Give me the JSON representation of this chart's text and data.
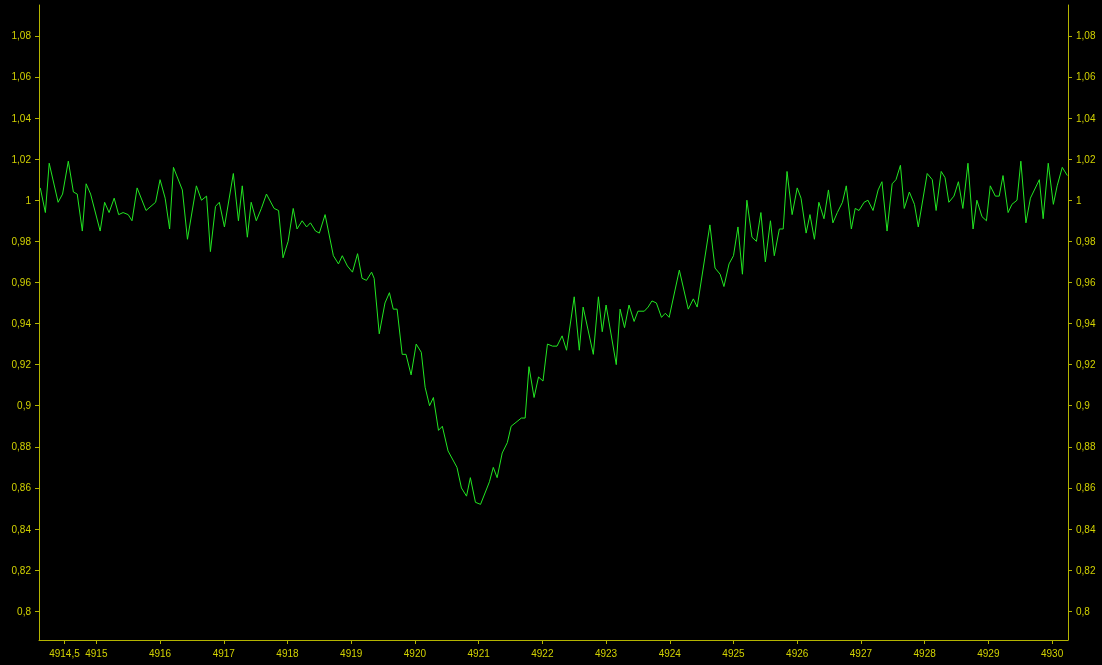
{
  "chart_data": {
    "type": "line",
    "color": "#22e622",
    "marker": "none",
    "x": [
      4914.12,
      4914.2,
      4914.26,
      4914.4,
      4914.47,
      4914.56,
      4914.64,
      4914.7,
      4914.78,
      4914.84,
      4914.91,
      4915.06,
      4915.13,
      4915.2,
      4915.28,
      4915.35,
      4915.42,
      4915.5,
      4915.56,
      4915.64,
      4915.78,
      4915.93,
      4916.0,
      4916.08,
      4916.15,
      4916.21,
      4916.35,
      4916.43,
      4916.57,
      4916.65,
      4916.73,
      4916.79,
      4916.87,
      4916.93,
      4917.01,
      4917.15,
      4917.23,
      4917.29,
      4917.37,
      4917.43,
      4917.51,
      4917.59,
      4917.67,
      4917.79,
      4917.86,
      4917.93,
      4918.01,
      4918.09,
      4918.15,
      4918.23,
      4918.3,
      4918.36,
      4918.44,
      4918.5,
      4918.59,
      4918.72,
      4918.8,
      4918.86,
      4918.94,
      4919.02,
      4919.1,
      4919.17,
      4919.24,
      4919.32,
      4919.36,
      4919.44,
      4919.53,
      4919.6,
      4919.66,
      4919.72,
      4919.8,
      4919.86,
      4919.94,
      4920.02,
      4920.1,
      4920.16,
      4920.23,
      4920.29,
      4920.37,
      4920.43,
      4920.52,
      4920.66,
      4920.73,
      4920.81,
      4920.87,
      4920.95,
      4921.03,
      4921.17,
      4921.23,
      4921.29,
      4921.37,
      4921.45,
      4921.51,
      4921.67,
      4921.73,
      4921.79,
      4921.87,
      4921.94,
      4922.01,
      4922.08,
      4922.16,
      4922.23,
      4922.31,
      4922.38,
      4922.5,
      4922.58,
      4922.64,
      4922.8,
      4922.88,
      4922.94,
      4923.0,
      4923.16,
      4923.22,
      4923.29,
      4923.36,
      4923.44,
      4923.5,
      4923.6,
      4923.66,
      4923.72,
      4923.79,
      4923.87,
      4923.93,
      4923.99,
      4924.15,
      4924.29,
      4924.37,
      4924.43,
      4924.63,
      4924.71,
      4924.79,
      4924.85,
      4924.93,
      4925.0,
      4925.07,
      4925.14,
      4925.21,
      4925.29,
      4925.36,
      4925.43,
      4925.5,
      4925.58,
      4925.64,
      4925.72,
      4925.78,
      4925.84,
      4925.92,
      4926.0,
      4926.06,
      4926.14,
      4926.2,
      4926.27,
      4926.34,
      4926.42,
      4926.49,
      4926.56,
      4926.63,
      4926.71,
      4926.77,
      4926.85,
      4926.91,
      4926.97,
      4927.05,
      4927.11,
      4927.19,
      4927.27,
      4927.33,
      4927.41,
      4927.49,
      4927.55,
      4927.62,
      4927.68,
      4927.76,
      4927.84,
      4927.9,
      4928.04,
      4928.12,
      4928.18,
      4928.26,
      4928.32,
      4928.38,
      4928.46,
      4928.53,
      4928.6,
      4928.68,
      4928.76,
      4928.82,
      4928.9,
      4928.97,
      4929.03,
      4929.11,
      4929.17,
      4929.23,
      4929.31,
      4929.37,
      4929.45,
      4929.51,
      4929.59,
      4929.66,
      4929.8,
      4929.86,
      4929.94,
      4930.02,
      4930.08,
      4930.16,
      4930.24
    ],
    "values": [
      1.006,
      0.994,
      1.018,
      0.999,
      1.003,
      1.019,
      1.004,
      1.003,
      0.985,
      1.008,
      1.003,
      0.985,
      0.999,
      0.994,
      1.001,
      0.993,
      0.994,
      0.993,
      0.99,
      1.006,
      0.995,
      0.999,
      1.01,
      1.001,
      0.986,
      1.016,
      1.005,
      0.981,
      1.007,
      1.0,
      1.002,
      0.975,
      0.997,
      0.999,
      0.987,
      1.013,
      0.99,
      1.007,
      0.982,
      0.999,
      0.99,
      0.996,
      1.003,
      0.996,
      0.995,
      0.972,
      0.98,
      0.996,
      0.986,
      0.99,
      0.987,
      0.989,
      0.985,
      0.984,
      0.993,
      0.973,
      0.969,
      0.973,
      0.968,
      0.965,
      0.974,
      0.962,
      0.961,
      0.965,
      0.962,
      0.935,
      0.95,
      0.955,
      0.947,
      0.947,
      0.925,
      0.925,
      0.915,
      0.93,
      0.926,
      0.909,
      0.9,
      0.904,
      0.888,
      0.89,
      0.878,
      0.87,
      0.86,
      0.856,
      0.865,
      0.853,
      0.852,
      0.863,
      0.87,
      0.865,
      0.877,
      0.882,
      0.89,
      0.894,
      0.894,
      0.919,
      0.904,
      0.914,
      0.912,
      0.93,
      0.929,
      0.929,
      0.934,
      0.927,
      0.953,
      0.927,
      0.948,
      0.925,
      0.953,
      0.936,
      0.949,
      0.92,
      0.947,
      0.938,
      0.949,
      0.941,
      0.946,
      0.946,
      0.948,
      0.951,
      0.95,
      0.943,
      0.945,
      0.943,
      0.966,
      0.947,
      0.952,
      0.948,
      0.988,
      0.967,
      0.964,
      0.958,
      0.969,
      0.973,
      0.987,
      0.964,
      1.0,
      0.982,
      0.98,
      0.994,
      0.97,
      0.99,
      0.973,
      0.986,
      0.986,
      1.014,
      0.993,
      1.006,
      1.001,
      0.984,
      0.993,
      0.981,
      0.999,
      0.991,
      1.005,
      0.989,
      0.994,
      0.999,
      1.007,
      0.986,
      0.996,
      0.995,
      0.999,
      1.0,
      0.995,
      1.005,
      1.009,
      0.985,
      1.008,
      1.01,
      1.017,
      0.996,
      1.004,
      0.998,
      0.987,
      1.013,
      1.01,
      0.995,
      1.014,
      1.011,
      0.999,
      1.002,
      1.009,
      0.996,
      1.018,
      0.986,
      1.0,
      0.992,
      0.99,
      1.007,
      1.002,
      1.002,
      1.012,
      0.994,
      0.998,
      1.0,
      1.019,
      0.989,
      1.001,
      1.01,
      0.991,
      1.018,
      0.998,
      1.007,
      1.016,
      1.012
    ],
    "xlim": [
      4914.1,
      4930.25
    ],
    "xticks": [
      {
        "value": 4914.5,
        "label": "4914,5"
      },
      4915,
      4916,
      4917,
      4918,
      4919,
      4920,
      4921,
      4922,
      4923,
      4924,
      4925,
      4926,
      4927,
      4928,
      4929,
      4930
    ],
    "ylim": [
      0.786,
      1.095
    ],
    "yticks": [
      {
        "value": 0.8,
        "label": "0,8"
      },
      {
        "value": 0.82,
        "label": "0,82"
      },
      {
        "value": 0.84,
        "label": "0,84"
      },
      {
        "value": 0.86,
        "label": "0,86"
      },
      {
        "value": 0.88,
        "label": "0,88"
      },
      {
        "value": 0.9,
        "label": "0,9"
      },
      {
        "value": 0.92,
        "label": "0,92"
      },
      {
        "value": 0.94,
        "label": "0,94"
      },
      {
        "value": 0.96,
        "label": "0,96"
      },
      {
        "value": 0.98,
        "label": "0,98"
      },
      1,
      {
        "value": 1.02,
        "label": "1,02"
      },
      {
        "value": 1.04,
        "label": "1,04"
      },
      {
        "value": 1.06,
        "label": "1,06"
      },
      {
        "value": 1.08,
        "label": "1,08"
      }
    ],
    "y2lim": [
      0.786,
      1.095
    ],
    "y2ticks": [
      {
        "value": 0.8,
        "label": "0,8"
      },
      {
        "value": 0.82,
        "label": "0,82"
      },
      {
        "value": 0.84,
        "label": "0,84"
      },
      {
        "value": 0.86,
        "label": "0,86"
      },
      {
        "value": 0.88,
        "label": "0,88"
      },
      {
        "value": 0.9,
        "label": "0,9"
      },
      {
        "value": 0.92,
        "label": "0,92"
      },
      {
        "value": 0.94,
        "label": "0,94"
      },
      {
        "value": 0.96,
        "label": "0,96"
      },
      {
        "value": 0.98,
        "label": "0,98"
      },
      1,
      {
        "value": 1.02,
        "label": "1,02"
      },
      {
        "value": 1.04,
        "label": "1,04"
      },
      {
        "value": 1.06,
        "label": "1,06"
      },
      {
        "value": 1.08,
        "label": "1,08"
      }
    ]
  }
}
